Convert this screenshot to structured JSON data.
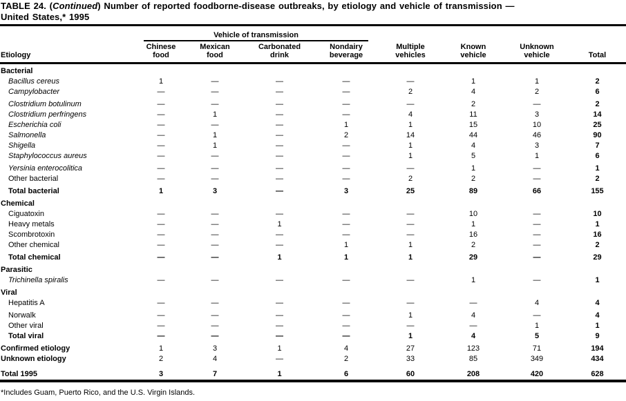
{
  "title": {
    "prefix": "TABLE 24. (",
    "continued": "Continued",
    "rest": ") Number of reported foodborne-disease outbreaks, by etiology and vehicle of transmission —",
    "line2": "United States,* 1995"
  },
  "table": {
    "span_header": "Vehicle of transmission",
    "etiology_header": "Etiology",
    "columns": [
      {
        "line1": "Chinese",
        "line2": "food"
      },
      {
        "line1": "Mexican",
        "line2": "food"
      },
      {
        "line1": "Carbonated",
        "line2": "drink"
      },
      {
        "line1": "Nondairy",
        "line2": "beverage"
      },
      {
        "line1": "Multiple",
        "line2": "vehicles"
      },
      {
        "line1": "Known",
        "line2": "vehicle"
      },
      {
        "line1": "Unknown",
        "line2": "vehicle"
      },
      {
        "line1": "",
        "line2": "Total"
      }
    ],
    "rows": [
      {
        "type": "section",
        "label": "Bacterial"
      },
      {
        "type": "data",
        "italic": true,
        "label": "Bacillus cereus",
        "values": [
          "1",
          "—",
          "—",
          "—",
          "—",
          "1",
          "1",
          "2"
        ]
      },
      {
        "type": "data",
        "italic": true,
        "label": "Campylobacter",
        "values": [
          "—",
          "—",
          "—",
          "—",
          "2",
          "4",
          "2",
          "6"
        ]
      },
      {
        "type": "data",
        "italic": true,
        "gap": "gap",
        "label": "Clostridium botulinum",
        "values": [
          "—",
          "—",
          "—",
          "—",
          "—",
          "2",
          "—",
          "2"
        ]
      },
      {
        "type": "data",
        "italic": true,
        "label": "Clostridium perfringens",
        "values": [
          "—",
          "1",
          "—",
          "—",
          "4",
          "11",
          "3",
          "14"
        ]
      },
      {
        "type": "data",
        "italic": true,
        "label": "Escherichia coli",
        "values": [
          "—",
          "—",
          "—",
          "1",
          "1",
          "15",
          "10",
          "25"
        ]
      },
      {
        "type": "data",
        "italic": true,
        "label": "Salmonella",
        "values": [
          "—",
          "1",
          "—",
          "2",
          "14",
          "44",
          "46",
          "90"
        ]
      },
      {
        "type": "data",
        "italic": true,
        "label": "Shigella",
        "values": [
          "—",
          "1",
          "—",
          "—",
          "1",
          "4",
          "3",
          "7"
        ]
      },
      {
        "type": "data",
        "italic": true,
        "label": "Staphylococcus aureus",
        "values": [
          "—",
          "—",
          "—",
          "—",
          "1",
          "5",
          "1",
          "6"
        ]
      },
      {
        "type": "data",
        "italic": true,
        "gap": "gap",
        "label": "Yersinia enterocolitica",
        "values": [
          "—",
          "—",
          "—",
          "—",
          "—",
          "1",
          "—",
          "1"
        ]
      },
      {
        "type": "data",
        "label": "Other bacterial",
        "values": [
          "—",
          "—",
          "—",
          "—",
          "2",
          "2",
          "—",
          "2"
        ]
      },
      {
        "type": "total",
        "gap": "gap",
        "label": "Total bacterial",
        "values": [
          "1",
          "3",
          "—",
          "3",
          "25",
          "89",
          "66",
          "155"
        ]
      },
      {
        "type": "section",
        "gap": "gap",
        "label": "Chemical"
      },
      {
        "type": "data",
        "label": "Ciguatoxin",
        "values": [
          "—",
          "—",
          "—",
          "—",
          "—",
          "10",
          "—",
          "10"
        ]
      },
      {
        "type": "data",
        "label": "Heavy metals",
        "values": [
          "—",
          "—",
          "1",
          "—",
          "—",
          "1",
          "—",
          "1"
        ]
      },
      {
        "type": "data",
        "label": "Scombrotoxin",
        "values": [
          "—",
          "—",
          "—",
          "—",
          "—",
          "16",
          "—",
          "16"
        ]
      },
      {
        "type": "data",
        "label": "Other chemical",
        "values": [
          "—",
          "—",
          "—",
          "1",
          "1",
          "2",
          "—",
          "2"
        ]
      },
      {
        "type": "total",
        "gap": "gap",
        "label": "Total chemical",
        "values": [
          "—",
          "—",
          "1",
          "1",
          "1",
          "29",
          "—",
          "29"
        ]
      },
      {
        "type": "section",
        "gap": "gap",
        "label": "Parasitic"
      },
      {
        "type": "data",
        "italic": true,
        "label": "Trichinella spiralis",
        "values": [
          "—",
          "—",
          "—",
          "—",
          "—",
          "1",
          "—",
          "1"
        ]
      },
      {
        "type": "section",
        "gap": "gap",
        "label": "Viral"
      },
      {
        "type": "data",
        "label": "Hepatitis A",
        "values": [
          "—",
          "—",
          "—",
          "—",
          "—",
          "—",
          "4",
          "4"
        ]
      },
      {
        "type": "data",
        "gap": "gap",
        "label": "Norwalk",
        "values": [
          "—",
          "—",
          "—",
          "—",
          "1",
          "4",
          "—",
          "4"
        ]
      },
      {
        "type": "data",
        "label": "Other viral",
        "values": [
          "—",
          "—",
          "—",
          "—",
          "—",
          "—",
          "1",
          "1"
        ]
      },
      {
        "type": "total",
        "label": "Total viral",
        "values": [
          "—",
          "—",
          "—",
          "—",
          "1",
          "4",
          "5",
          "9"
        ]
      },
      {
        "type": "flush",
        "gap": "gap",
        "label": "Confirmed etiology",
        "values": [
          "1",
          "3",
          "1",
          "4",
          "27",
          "123",
          "71",
          "194"
        ]
      },
      {
        "type": "flush",
        "label": "Unknown etiology",
        "values": [
          "2",
          "4",
          "—",
          "2",
          "33",
          "85",
          "349",
          "434"
        ]
      },
      {
        "type": "flush-total",
        "gap": "biggap",
        "label": "Total 1995",
        "values": [
          "3",
          "7",
          "1",
          "6",
          "60",
          "208",
          "420",
          "628"
        ]
      }
    ]
  },
  "footnote": "*Includes Guam, Puerto Rico, and the U.S. Virgin Islands."
}
